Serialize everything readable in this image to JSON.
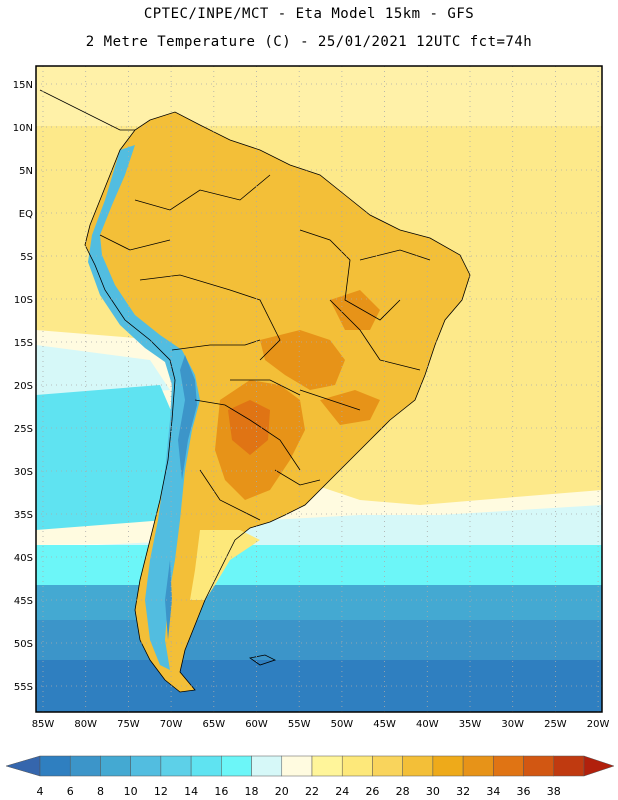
{
  "header": {
    "line1": "CPTEC/INPE/MCT -  Eta Model 15km - GFS",
    "line2": "2 Metre Temperature (C) - 25/01/2021 12UTC fct=74h"
  },
  "axes": {
    "lat_labels": [
      "15N",
      "10N",
      "5N",
      "EQ",
      "5S",
      "10S",
      "15S",
      "20S",
      "25S",
      "30S",
      "35S",
      "40S",
      "45S",
      "50S",
      "55S"
    ],
    "lon_labels": [
      "85W",
      "80W",
      "75W",
      "70W",
      "65W",
      "60W",
      "55W",
      "50W",
      "45W",
      "40W",
      "35W",
      "30W",
      "25W",
      "20W"
    ]
  },
  "colorbar": {
    "labels": [
      "4",
      "6",
      "8",
      "10",
      "12",
      "14",
      "16",
      "18",
      "20",
      "22",
      "24",
      "26",
      "28",
      "30",
      "32",
      "34",
      "36",
      "38"
    ],
    "colors": [
      "#3b6fb6",
      "#2f7fc0",
      "#3c95c9",
      "#44a9d2",
      "#52bde0",
      "#5dd0e8",
      "#5fe3f1",
      "#6cf6f8",
      "#d6f8f8",
      "#fffbe0",
      "#fff59a",
      "#fde87a",
      "#f9d45c",
      "#f3bf38",
      "#eeaa1a",
      "#e79318",
      "#e07414",
      "#d25712",
      "#c03a10",
      "#b1200c"
    ],
    "low_arrow_color": "#3566ad",
    "high_arrow_color": "#b1200c"
  },
  "map_colors": {
    "ocean_warm": "#fde98a",
    "ocean_warm2": "#fff1a8",
    "ocean_mid": "#fffbe0",
    "ocean_cool1": "#d6f8f8",
    "ocean_cool2": "#6cf6f8",
    "ocean_cool3": "#5fe3f1",
    "ocean_cold1": "#44a9d2",
    "ocean_cold2": "#3c95c9",
    "ocean_cold3": "#2f7fc0",
    "land_main": "#f3bf38",
    "land_hot": "#e79318",
    "land_hotter": "#e07414",
    "andes_cold": "#52bde0",
    "andes_cold2": "#3c95c9",
    "patagonia": "#fde87a",
    "grid_color": "#aaaaaa",
    "border_color": "#000000"
  }
}
